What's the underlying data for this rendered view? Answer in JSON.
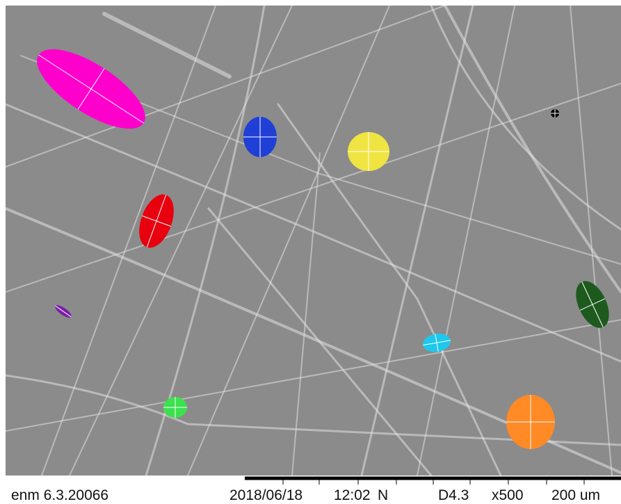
{
  "footer": {
    "sample_id": "enm 6.3.20066",
    "date": "2018/06/18",
    "time": "12:02",
    "mode": "N",
    "distance": "D4.3",
    "magnification": "x500",
    "scale": "200 um"
  }
}
